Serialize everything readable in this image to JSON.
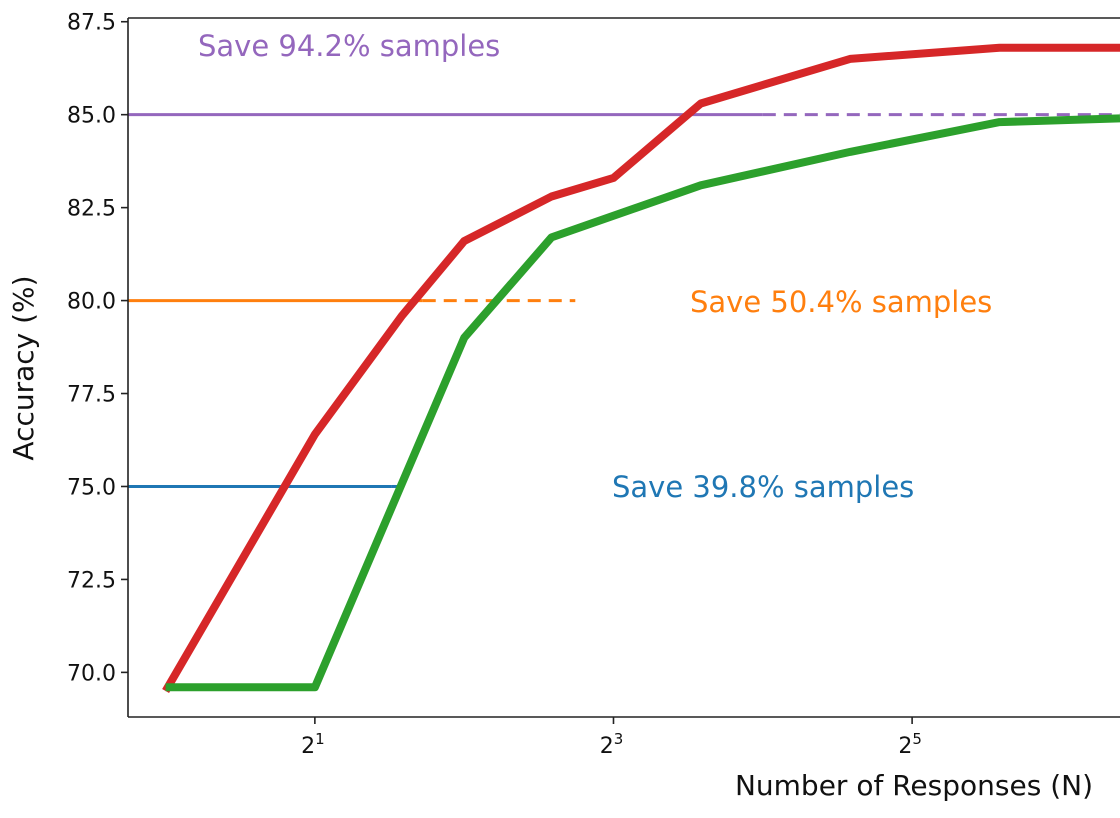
{
  "chart_data": {
    "type": "line",
    "xlabel": "Number of Responses (N)",
    "ylabel": "Accuracy (%)",
    "x_scale": "log2",
    "x_ticks": [
      {
        "value": 2,
        "base": "2",
        "exp": "1"
      },
      {
        "value": 8,
        "base": "2",
        "exp": "3"
      },
      {
        "value": 32,
        "base": "2",
        "exp": "5"
      }
    ],
    "y_ticks": [
      "70.0",
      "72.5",
      "75.0",
      "77.5",
      "80.0",
      "82.5",
      "85.0",
      "87.5"
    ],
    "ylim": [
      68.8,
      87.6
    ],
    "xlim": [
      0.84,
      84
    ],
    "grid": false,
    "series": [
      {
        "color": "#d62728",
        "x": [
          1,
          2,
          3,
          4,
          6,
          8,
          12,
          24,
          48,
          84
        ],
        "y": [
          69.5,
          76.4,
          79.6,
          81.6,
          82.8,
          83.3,
          85.3,
          86.5,
          86.8,
          86.8
        ]
      },
      {
        "color": "#2ca02c",
        "x": [
          1,
          2,
          3,
          4,
          6,
          12,
          24,
          48,
          84
        ],
        "y": [
          69.6,
          69.6,
          75.1,
          79.0,
          81.7,
          83.1,
          84.0,
          84.8,
          84.9
        ]
      }
    ],
    "thresholds": [
      {
        "y": 75.0,
        "color": "#1f77b4",
        "solid_to_x": 2.86,
        "dashed_to_x": 3.0,
        "label": "Save 39.8% samples"
      },
      {
        "y": 80.0,
        "color": "#ff7f0e",
        "solid_to_x": 3.3,
        "dashed_to_x": 6.7,
        "label": "Save 50.4% samples"
      },
      {
        "y": 85.0,
        "color": "#9467bd",
        "solid_to_x": 16.0,
        "dashed_to_x": 84,
        "label": "Save 94.2% samples"
      }
    ]
  }
}
